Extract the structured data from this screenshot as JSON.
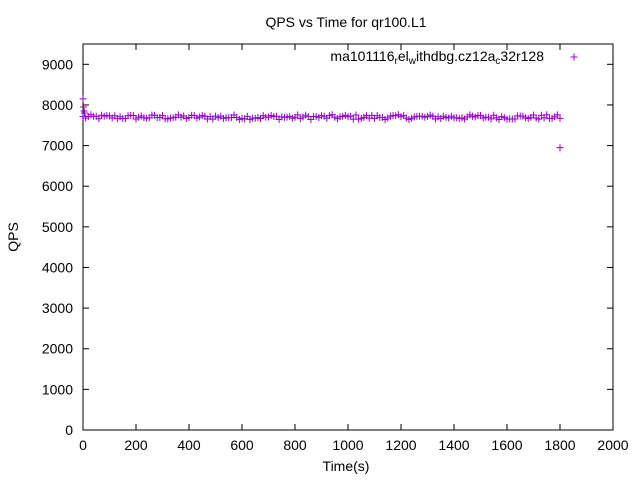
{
  "chart_data": {
    "type": "scatter",
    "title": "QPS vs Time for qr100.L1",
    "xlabel": "Time(s)",
    "ylabel": "QPS",
    "xlim": [
      0,
      2000
    ],
    "ylim": [
      0,
      9500
    ],
    "xticks": [
      0,
      200,
      400,
      600,
      800,
      1000,
      1200,
      1400,
      1600,
      1800,
      2000
    ],
    "yticks": [
      0,
      1000,
      2000,
      3000,
      4000,
      5000,
      6000,
      7000,
      8000,
      9000
    ],
    "xtick_labels": [
      "0",
      "200",
      "400",
      "600",
      "800",
      "1000",
      "1200",
      "1400",
      "1600",
      "1800",
      "2000"
    ],
    "ytick_labels": [
      "0",
      "1000",
      "2000",
      "3000",
      "4000",
      "5000",
      "6000",
      "7000",
      "8000",
      "9000"
    ],
    "grid": false,
    "legend": {
      "placement": "top-right",
      "label_parts": [
        {
          "text": "ma101116",
          "sub": false
        },
        {
          "text": "r",
          "sub": true
        },
        {
          "text": "el",
          "sub": false
        },
        {
          "text": "w",
          "sub": true
        },
        {
          "text": "ithdbg.cz12a",
          "sub": false
        },
        {
          "text": "c",
          "sub": true
        },
        {
          "text": "32r128",
          "sub": false
        }
      ]
    },
    "series": [
      {
        "color": "#9400d3",
        "marker": "+",
        "sampling": {
          "x_start": 0,
          "x_end": 1800,
          "x_step": 10,
          "baseline": 7700,
          "jitter": 60
        },
        "initial_points": [
          {
            "x": 0,
            "y": 8150
          },
          {
            "x": 2,
            "y": 7950
          },
          {
            "x": 4,
            "y": 7850
          },
          {
            "x": 6,
            "y": 7800
          }
        ],
        "outlier_points": [
          {
            "x": 1800,
            "y": 6950
          }
        ]
      }
    ]
  }
}
